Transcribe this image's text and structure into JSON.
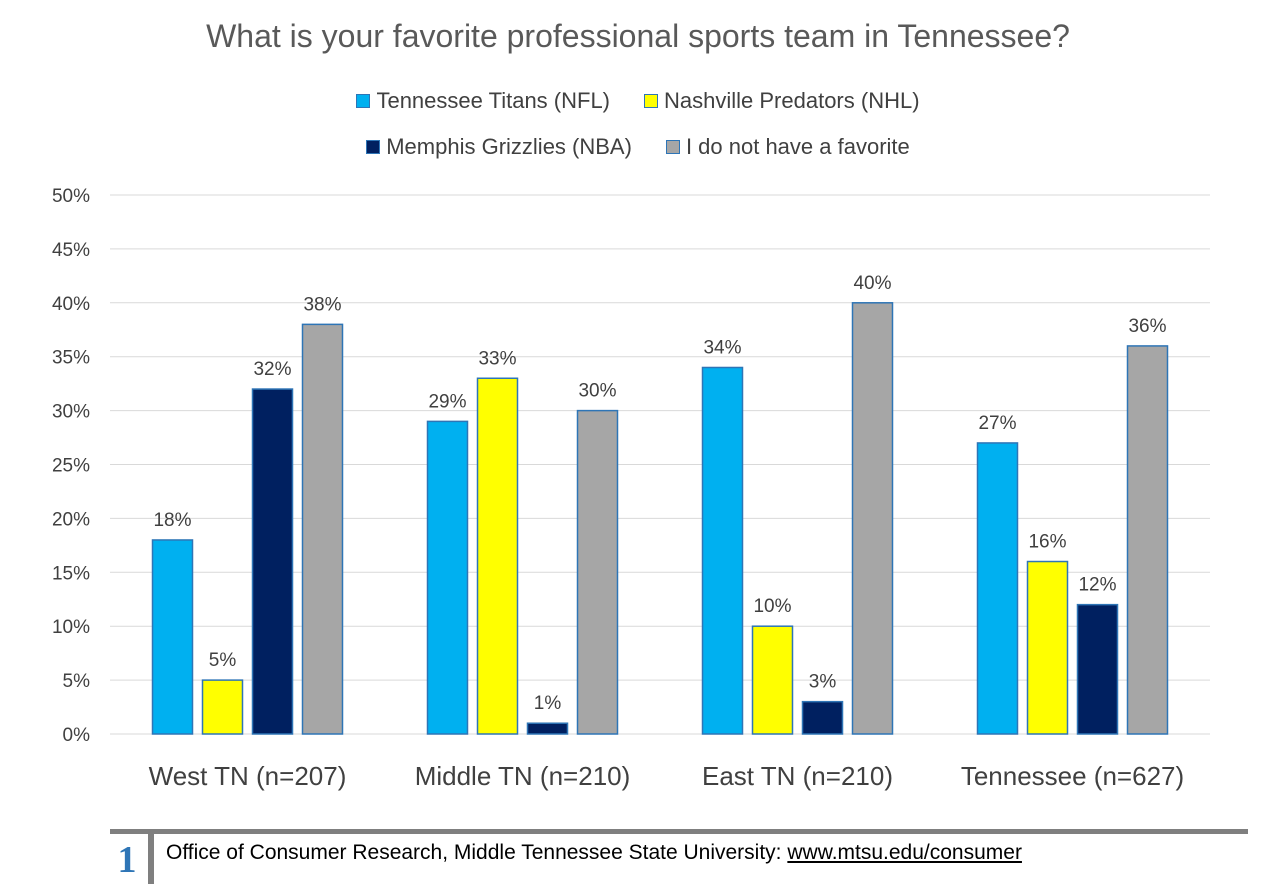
{
  "chart_data": {
    "type": "bar",
    "title": "What is your favorite professional sports team in Tennessee?",
    "categories": [
      "West TN (n=207)",
      "Middle TN (n=210)",
      "East TN (n=210)",
      "Tennessee (n=627)"
    ],
    "series": [
      {
        "name": "Tennessee Titans (NFL)",
        "color": "#00b0f0",
        "values": [
          18,
          29,
          34,
          27
        ],
        "labels": [
          "18%",
          "29%",
          "34%",
          "27%"
        ]
      },
      {
        "name": "Nashville Predators (NHL)",
        "color": "#ffff00",
        "values": [
          5,
          33,
          10,
          16
        ],
        "labels": [
          "5%",
          "33%",
          "10%",
          "16%"
        ]
      },
      {
        "name": "Memphis Grizzlies (NBA)",
        "color": "#002060",
        "values": [
          32,
          1,
          3,
          12
        ],
        "labels": [
          "32%",
          "1%",
          "3%",
          "12%"
        ]
      },
      {
        "name": "I do not have a favorite",
        "color": "#a6a6a6",
        "values": [
          38,
          30,
          40,
          36
        ],
        "labels": [
          "38%",
          "30%",
          "40%",
          "36%"
        ]
      }
    ],
    "ylim": [
      0,
      50
    ],
    "yticks": [
      0,
      5,
      10,
      15,
      20,
      25,
      30,
      35,
      40,
      45,
      50
    ],
    "ytick_labels": [
      "0%",
      "5%",
      "10%",
      "15%",
      "20%",
      "25%",
      "30%",
      "35%",
      "40%",
      "45%",
      "50%"
    ],
    "grid": true,
    "legend_position": "top"
  },
  "footer": {
    "page_number": "1",
    "text": "Office of Consumer Research, Middle Tennessee State University: ",
    "link": "www.mtsu.edu/consumer"
  }
}
